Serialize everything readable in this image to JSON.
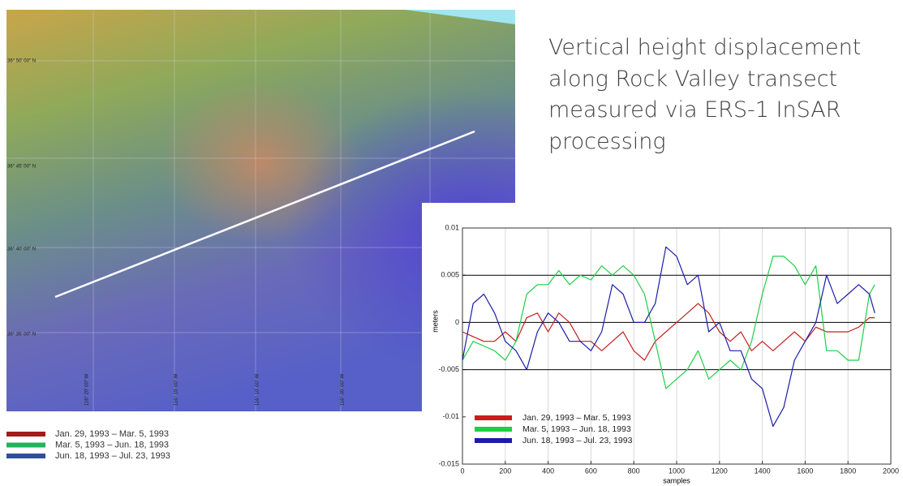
{
  "slide": {
    "title_lines": [
      "Vertical height displacement",
      "along Rock Valley transect",
      "measured via ERS-1 InSAR",
      "processing"
    ]
  },
  "map": {
    "lat_labels": [
      "36° 50' 00\" N",
      "36° 45' 00\" N",
      "36° 40' 00\" N",
      "36° 35' 00\" N"
    ],
    "lon_labels": [
      "116° 20' 00\" W",
      "116° 15' 00\" W",
      "116° 10' 00\" W",
      "116° 05' 00\" W"
    ],
    "legend": [
      {
        "name": "Jan. 29, 1993 – Mar. 5, 1993",
        "color": "#a31b1b"
      },
      {
        "name": "Mar. 5, 1993 – Jun. 18, 1993",
        "color": "#22b45c"
      },
      {
        "name": "Jun. 18, 1993 – Jul. 23, 1993",
        "color": "#2f4f98"
      }
    ]
  },
  "chart_data": {
    "type": "line",
    "x_label": "samples",
    "y_label": "meters",
    "x": [
      0,
      50,
      100,
      150,
      200,
      250,
      300,
      350,
      400,
      450,
      500,
      550,
      600,
      650,
      700,
      750,
      800,
      850,
      900,
      950,
      1000,
      1050,
      1100,
      1150,
      1200,
      1250,
      1300,
      1350,
      1400,
      1450,
      1500,
      1550,
      1600,
      1650,
      1700,
      1750,
      1800,
      1850,
      1900,
      1925
    ],
    "series": [
      {
        "name": "Jan. 29, 1993 – Mar. 5, 1993",
        "color": "#c81e1e",
        "values": [
          -0.001,
          -0.0015,
          -0.002,
          -0.002,
          -0.001,
          -0.002,
          0.0005,
          0.001,
          -0.001,
          0.001,
          0,
          -0.002,
          -0.002,
          -0.003,
          -0.002,
          -0.001,
          -0.003,
          -0.004,
          -0.002,
          -0.001,
          0,
          0.001,
          0.002,
          0.001,
          -0.001,
          -0.002,
          -0.001,
          -0.003,
          -0.002,
          -0.003,
          -0.002,
          -0.001,
          -0.002,
          -0.0005,
          -0.001,
          -0.001,
          -0.001,
          -0.0005,
          0.0005,
          0.0005
        ]
      },
      {
        "name": "Mar. 5, 1993 – Jun. 18, 1993",
        "color": "#1ecf4a",
        "values": [
          -0.004,
          -0.002,
          -0.0025,
          -0.003,
          -0.004,
          -0.002,
          0.003,
          0.004,
          0.004,
          0.0055,
          0.004,
          0.005,
          0.0045,
          0.006,
          0.005,
          0.006,
          0.005,
          0.003,
          -0.002,
          -0.007,
          -0.006,
          -0.005,
          -0.003,
          -0.006,
          -0.005,
          -0.004,
          -0.005,
          -0.002,
          0.003,
          0.007,
          0.007,
          0.006,
          0.004,
          0.006,
          -0.003,
          -0.003,
          -0.004,
          -0.004,
          0.003,
          0.004
        ]
      },
      {
        "name": "Jun. 18, 1993 – Jul. 23, 1993",
        "color": "#1c1ca8",
        "values": [
          -0.004,
          0.002,
          0.003,
          0.001,
          -0.002,
          -0.003,
          -0.005,
          -0.001,
          0.001,
          0,
          -0.002,
          -0.002,
          -0.003,
          -0.001,
          0.004,
          0.003,
          0,
          0,
          0.002,
          0.008,
          0.007,
          0.004,
          0.005,
          -0.001,
          0,
          -0.003,
          -0.003,
          -0.006,
          -0.007,
          -0.011,
          -0.009,
          -0.004,
          -0.002,
          0,
          0.005,
          0.002,
          0.003,
          0.004,
          0.003,
          0.001
        ]
      }
    ],
    "xlim": [
      0,
      2000
    ],
    "xticks": [
      0,
      200,
      400,
      600,
      800,
      1000,
      1200,
      1400,
      1600,
      1800,
      2000
    ],
    "ylim": [
      -0.015,
      0.01
    ],
    "yticks": [
      -0.015,
      -0.01,
      -0.005,
      0,
      0.005,
      0.01
    ],
    "reference_lines": [
      -0.005,
      0,
      0.005
    ],
    "grid": true
  }
}
